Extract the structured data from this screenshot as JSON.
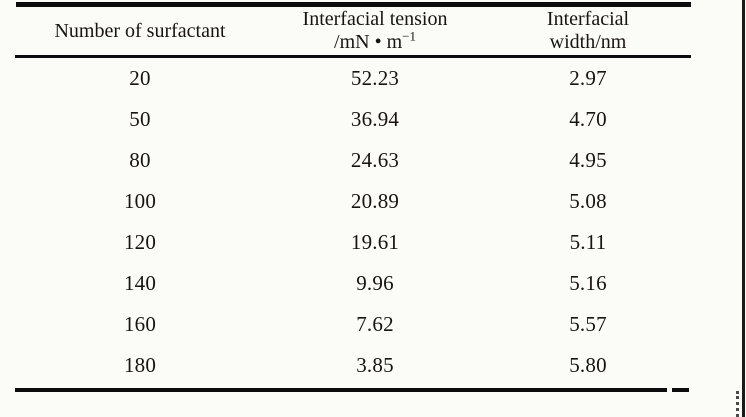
{
  "page": {
    "background_color": "#fbfbf8",
    "ink_color": "#171412",
    "rule_color": "#0c0c0c"
  },
  "table": {
    "header": {
      "col1": "Number of surfactant",
      "col2_line1": "Interfacial tension",
      "col2_unit_base": "/mN • m",
      "col2_unit_exponent": "−1",
      "col3_line1": "Interfacial",
      "col3_line2": "width/nm"
    },
    "rows": [
      {
        "surfactant": "20",
        "tension": "52.23",
        "width": "2.97"
      },
      {
        "surfactant": "50",
        "tension": "36.94",
        "width": "4.70"
      },
      {
        "surfactant": "80",
        "tension": "24.63",
        "width": "4.95"
      },
      {
        "surfactant": "100",
        "tension": "20.89",
        "width": "5.08"
      },
      {
        "surfactant": "120",
        "tension": "19.61",
        "width": "5.11"
      },
      {
        "surfactant": "140",
        "tension": "9.96",
        "width": "5.16"
      },
      {
        "surfactant": "160",
        "tension": "7.62",
        "width": "5.57"
      },
      {
        "surfactant": "180",
        "tension": "3.85",
        "width": "5.80"
      }
    ]
  }
}
